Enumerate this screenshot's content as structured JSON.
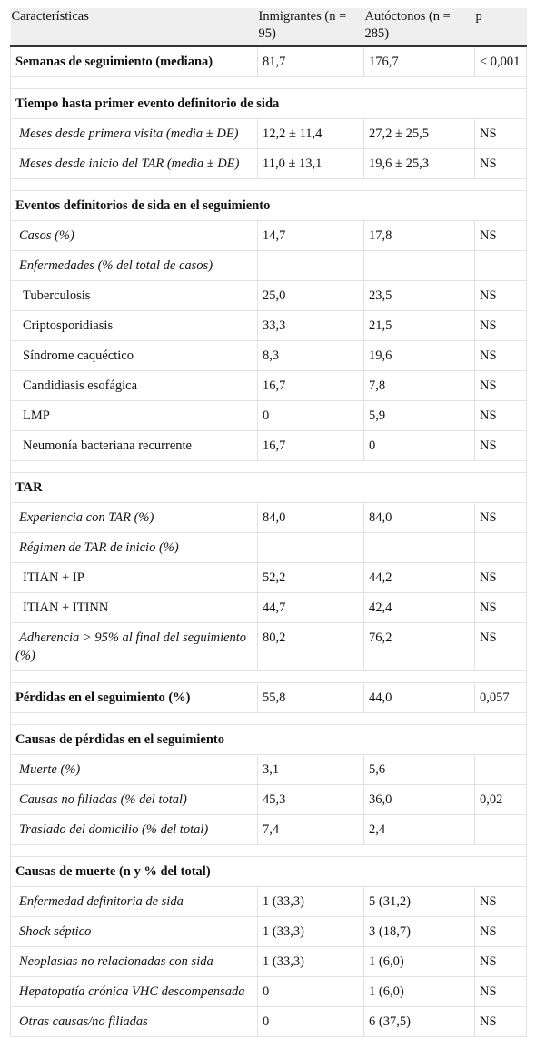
{
  "header": [
    "Características",
    "Inmigrantes (n = 95)",
    "Autóctonos (n = 285)",
    "p"
  ],
  "sections": [
    {
      "title": "Semanas de seguimiento (mediana)",
      "values": [
        "81,7",
        "176,7",
        "< 0,001"
      ]
    },
    {
      "title": "Tiempo hasta primer evento definitorio de sida",
      "rows": [
        {
          "label": "Meses desde primera visita (media ± DE)",
          "values": [
            "12,2 ± 11,4",
            "27,2 ± 25,5",
            "NS"
          ]
        },
        {
          "label": "Meses desde inicio del TAR (media ± DE)",
          "values": [
            "11,0 ± 13,1",
            "19,6 ± 25,3",
            "NS"
          ]
        }
      ]
    },
    {
      "title": "Eventos definitorios de sida en el seguimiento",
      "rows": [
        {
          "label": "Casos (%)",
          "values": [
            "14,7",
            "17,8",
            "NS"
          ]
        },
        {
          "label": "Enfermedades (% del total de casos)",
          "items": [
            {
              "label": "Tuberculosis",
              "values": [
                "25,0",
                "23,5",
                "NS"
              ]
            },
            {
              "label": "Criptosporidiasis",
              "values": [
                "33,3",
                "21,5",
                "NS"
              ]
            },
            {
              "label": "Síndrome caquéctico",
              "values": [
                "8,3",
                "19,6",
                "NS"
              ]
            },
            {
              "label": "Candidiasis esofágica",
              "values": [
                "16,7",
                "7,8",
                "NS"
              ]
            },
            {
              "label": "LMP",
              "values": [
                "0",
                "5,9",
                "NS"
              ]
            },
            {
              "label": "Neumonía bacteriana recurrente",
              "values": [
                "16,7",
                "0",
                "NS"
              ]
            }
          ]
        }
      ]
    },
    {
      "title": "TAR",
      "rows": [
        {
          "label": "Experiencia con TAR (%)",
          "values": [
            "84,0",
            "84,0",
            "NS"
          ]
        },
        {
          "label": "Régimen de TAR de inicio (%)",
          "items": [
            {
              "label": "ITIAN + IP",
              "values": [
                "52,2",
                "44,2",
                "NS"
              ]
            },
            {
              "label": "ITIAN + ITINN",
              "values": [
                "44,7",
                "42,4",
                "NS"
              ]
            }
          ]
        },
        {
          "label": "Adherencia > 95% al final del seguimiento (%)",
          "values": [
            "80,2",
            "76,2",
            "NS"
          ]
        }
      ]
    },
    {
      "title": "Pérdidas en el seguimiento (%)",
      "values": [
        "55,8",
        "44,0",
        "0,057"
      ]
    },
    {
      "title": "Causas de pérdidas en el seguimiento",
      "rows": [
        {
          "label": "Muerte (%)",
          "values": [
            "3,1",
            "5,6",
            null
          ]
        },
        {
          "label": "Causas no filiadas (% del total)",
          "values": [
            "45,3",
            "36,0",
            "0,02"
          ]
        },
        {
          "label": "Traslado del domicilio (% del total)",
          "values": [
            "7,4",
            "2,4",
            null
          ]
        }
      ]
    },
    {
      "title": "Causas de muerte (n y % del total)",
      "rows": [
        {
          "label": "Enfermedad definitoria de sida",
          "values": [
            "1 (33,3)",
            "5 (31,2)",
            "NS"
          ]
        },
        {
          "label": "Shock séptico",
          "values": [
            "1 (33,3)",
            "3 (18,7)",
            "NS"
          ]
        },
        {
          "label": "Neoplasias no relacionadas con sida",
          "values": [
            "1 (33,3)",
            "1 (6,0)",
            "NS"
          ]
        },
        {
          "label": "Hepatopatía crónica VHC descompensada",
          "values": [
            "0",
            "1 (6,0)",
            "NS"
          ]
        },
        {
          "label": "Otras causas/no filiadas",
          "values": [
            "0",
            "6 (37,5)",
            "NS"
          ]
        }
      ]
    }
  ]
}
